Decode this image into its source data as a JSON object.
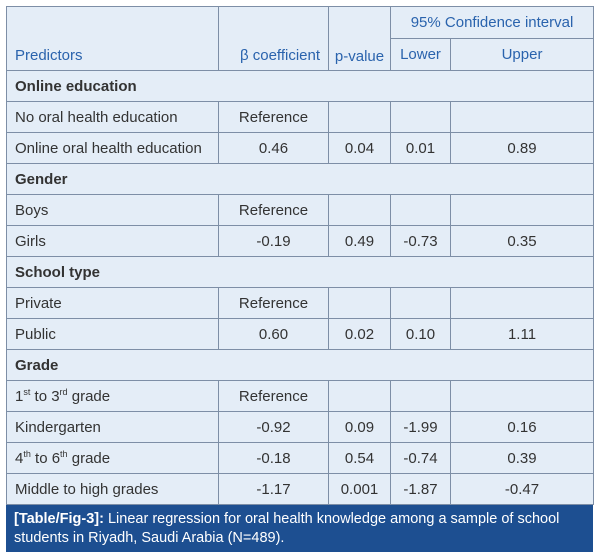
{
  "headers": {
    "predictors": "Predictors",
    "beta": "β coefficient",
    "p": "p-value",
    "ci": "95% Confidence interval",
    "lower": "Lower",
    "upper": "Upper"
  },
  "sections": [
    {
      "title": "Online education",
      "rows": [
        {
          "label": [
            "No oral health education"
          ],
          "beta": "Reference"
        },
        {
          "label": [
            "Online oral health education"
          ],
          "beta": "0.46",
          "p": "0.04",
          "lower": "0.01",
          "upper": "0.89"
        }
      ]
    },
    {
      "title": "Gender",
      "rows": [
        {
          "label": [
            "Boys"
          ],
          "beta": "Reference"
        },
        {
          "label": [
            "Girls"
          ],
          "beta": "-0.19",
          "p": "0.49",
          "lower": "-0.73",
          "upper": "0.35"
        }
      ]
    },
    {
      "title": "School type",
      "rows": [
        {
          "label": [
            "Private"
          ],
          "beta": "Reference"
        },
        {
          "label": [
            "Public"
          ],
          "beta": "0.60",
          "p": "0.02",
          "lower": "0.10",
          "upper": "1.11"
        }
      ]
    },
    {
      "title": "Grade",
      "rows": [
        {
          "label": [
            "1",
            "st",
            " to 3",
            "rd",
            " grade"
          ],
          "beta": "Reference"
        },
        {
          "label": [
            "Kindergarten"
          ],
          "beta": "-0.92",
          "p": "0.09",
          "lower": "-1.99",
          "upper": "0.16"
        },
        {
          "label": [
            "4",
            "th",
            " to 6",
            "th",
            " grade"
          ],
          "beta": "-0.18",
          "p": "0.54",
          "lower": "-0.74",
          "upper": "0.39"
        },
        {
          "label": [
            "Middle to high grades"
          ],
          "beta": "-1.17",
          "p": "0.001",
          "lower": "-1.87",
          "upper": "-0.47"
        }
      ]
    }
  ],
  "caption": {
    "label": "[Table/Fig-3]:",
    "text": "Linear regression for oral health knowledge among a sample of school students in Riyadh, Saudi Arabia (N=489)."
  }
}
